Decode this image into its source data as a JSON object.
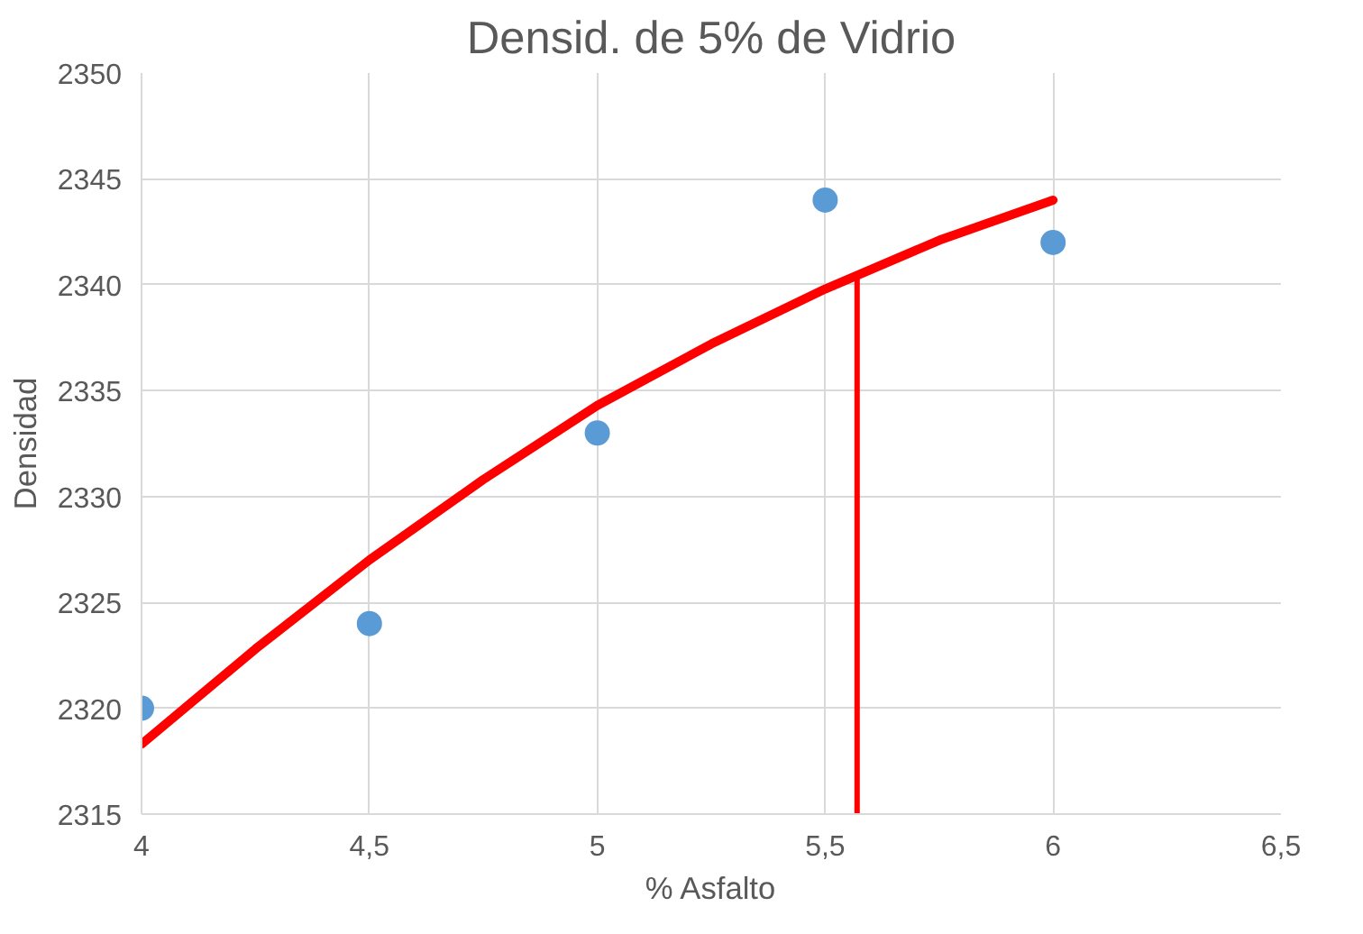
{
  "chart_data": {
    "type": "scatter",
    "title": "Densid. de 5% de Vidrio",
    "xlabel": "% Asfalto",
    "ylabel": "Densidad",
    "xlim": [
      4,
      6.5
    ],
    "xticks": [
      {
        "value": 4,
        "label": "4"
      },
      {
        "value": 4.5,
        "label": "4,5"
      },
      {
        "value": 5,
        "label": "5"
      },
      {
        "value": 5.5,
        "label": "5,5"
      },
      {
        "value": 6,
        "label": "6"
      },
      {
        "value": 6.5,
        "label": "6,5"
      }
    ],
    "ylim": [
      2315,
      2350
    ],
    "yticks": [
      2315,
      2320,
      2325,
      2330,
      2335,
      2340,
      2345,
      2350
    ],
    "grid": true,
    "series": [
      {
        "color": "#5b9bd5",
        "marker": "circle",
        "x": [
          4,
          4.5,
          5,
          5.5,
          6
        ],
        "values": [
          2320,
          2324,
          2333,
          2344,
          2342
        ]
      },
      {
        "type": "line",
        "color": "#ff0000",
        "marker": "none",
        "x": [
          4,
          4.25,
          4.5,
          4.75,
          5,
          5.25,
          5.5,
          5.75,
          6
        ],
        "values": [
          2318.3,
          2322.8,
          2327,
          2330.8,
          2334.3,
          2337.2,
          2339.8,
          2342.1,
          2344
        ]
      },
      {
        "type": "line",
        "color": "#ff0000",
        "marker": "none",
        "x": [
          5.57,
          5.57
        ],
        "values": [
          2315,
          2340.5
        ]
      }
    ]
  }
}
